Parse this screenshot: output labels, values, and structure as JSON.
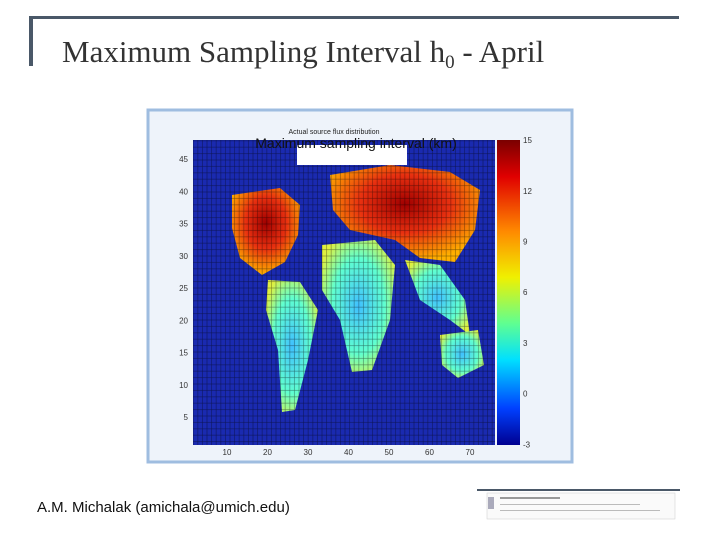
{
  "slide": {
    "title": {
      "text": "Maximum Sampling Interval h",
      "subscript": "0",
      "suffix": " - April"
    },
    "figure": {
      "overlay_title": "Maximum sampling interval (km)",
      "inner_title": "Actual source flux distribution",
      "yticks": [
        "45",
        "40",
        "35",
        "30",
        "25",
        "20",
        "15",
        "10",
        "5"
      ],
      "xticks": [
        "10",
        "20",
        "30",
        "40",
        "50",
        "60",
        "70"
      ],
      "colorbar_ticks": [
        "15",
        "12",
        "9",
        "6",
        "3",
        "0",
        "-3"
      ]
    },
    "footer": "A.M. Michalak (amichala@umich.edu)"
  }
}
